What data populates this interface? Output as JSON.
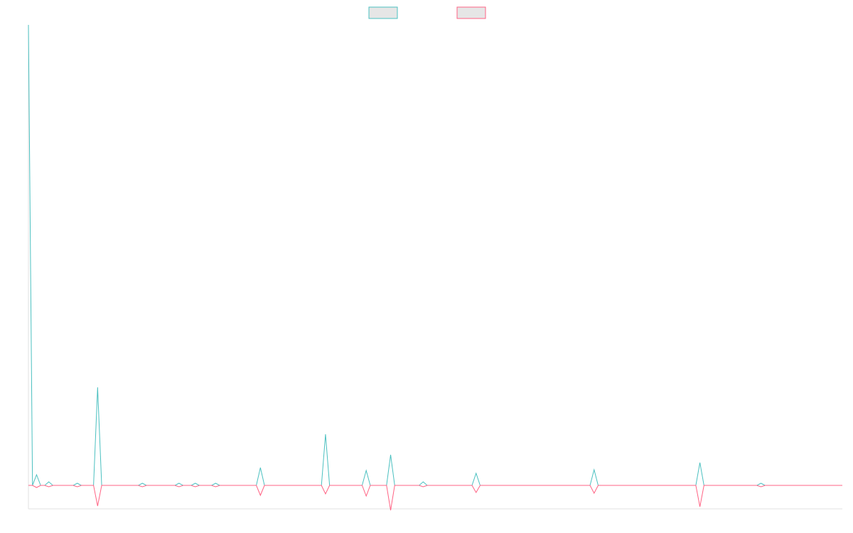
{
  "chart_data": {
    "type": "line",
    "x": [
      0,
      1,
      2,
      3,
      4,
      5,
      6,
      11,
      12,
      13,
      16,
      17,
      18,
      27,
      28,
      29,
      36,
      37,
      38,
      40,
      41,
      42,
      45,
      46,
      47,
      56,
      57,
      58,
      72,
      73,
      74,
      82,
      83,
      84,
      88,
      89,
      90,
      96,
      97,
      98,
      109,
      110,
      111,
      138,
      139,
      140,
      164,
      165,
      166,
      179,
      180,
      181,
      200
    ],
    "series": [
      {
        "color": "#4bc0c0",
        "values": [
          648,
          0,
          15,
          0,
          0,
          5,
          0,
          0,
          3,
          0,
          0,
          138,
          0,
          0,
          3,
          0,
          0,
          3,
          0,
          0,
          3,
          0,
          0,
          3,
          0,
          0,
          25,
          0,
          0,
          72,
          0,
          0,
          21,
          0,
          0,
          43,
          0,
          0,
          5,
          0,
          0,
          17,
          0,
          0,
          22,
          0,
          0,
          32,
          0,
          0,
          3,
          0,
          0
        ]
      },
      {
        "color": "#ff6384",
        "values": [
          0,
          0,
          -3,
          0,
          0,
          -2,
          0,
          0,
          -2,
          0,
          0,
          -29,
          0,
          0,
          -2,
          0,
          0,
          -2,
          0,
          0,
          -2,
          0,
          0,
          -2,
          0,
          0,
          -14,
          0,
          0,
          -12,
          0,
          0,
          -15,
          0,
          0,
          -35,
          0,
          0,
          -2,
          0,
          0,
          -10,
          0,
          0,
          -11,
          0,
          0,
          -30,
          0,
          0,
          -2,
          0,
          0
        ]
      }
    ],
    "xlim": [
      0,
      200
    ],
    "ylim": [
      -33,
      648
    ],
    "grid": false,
    "legend": "top"
  }
}
